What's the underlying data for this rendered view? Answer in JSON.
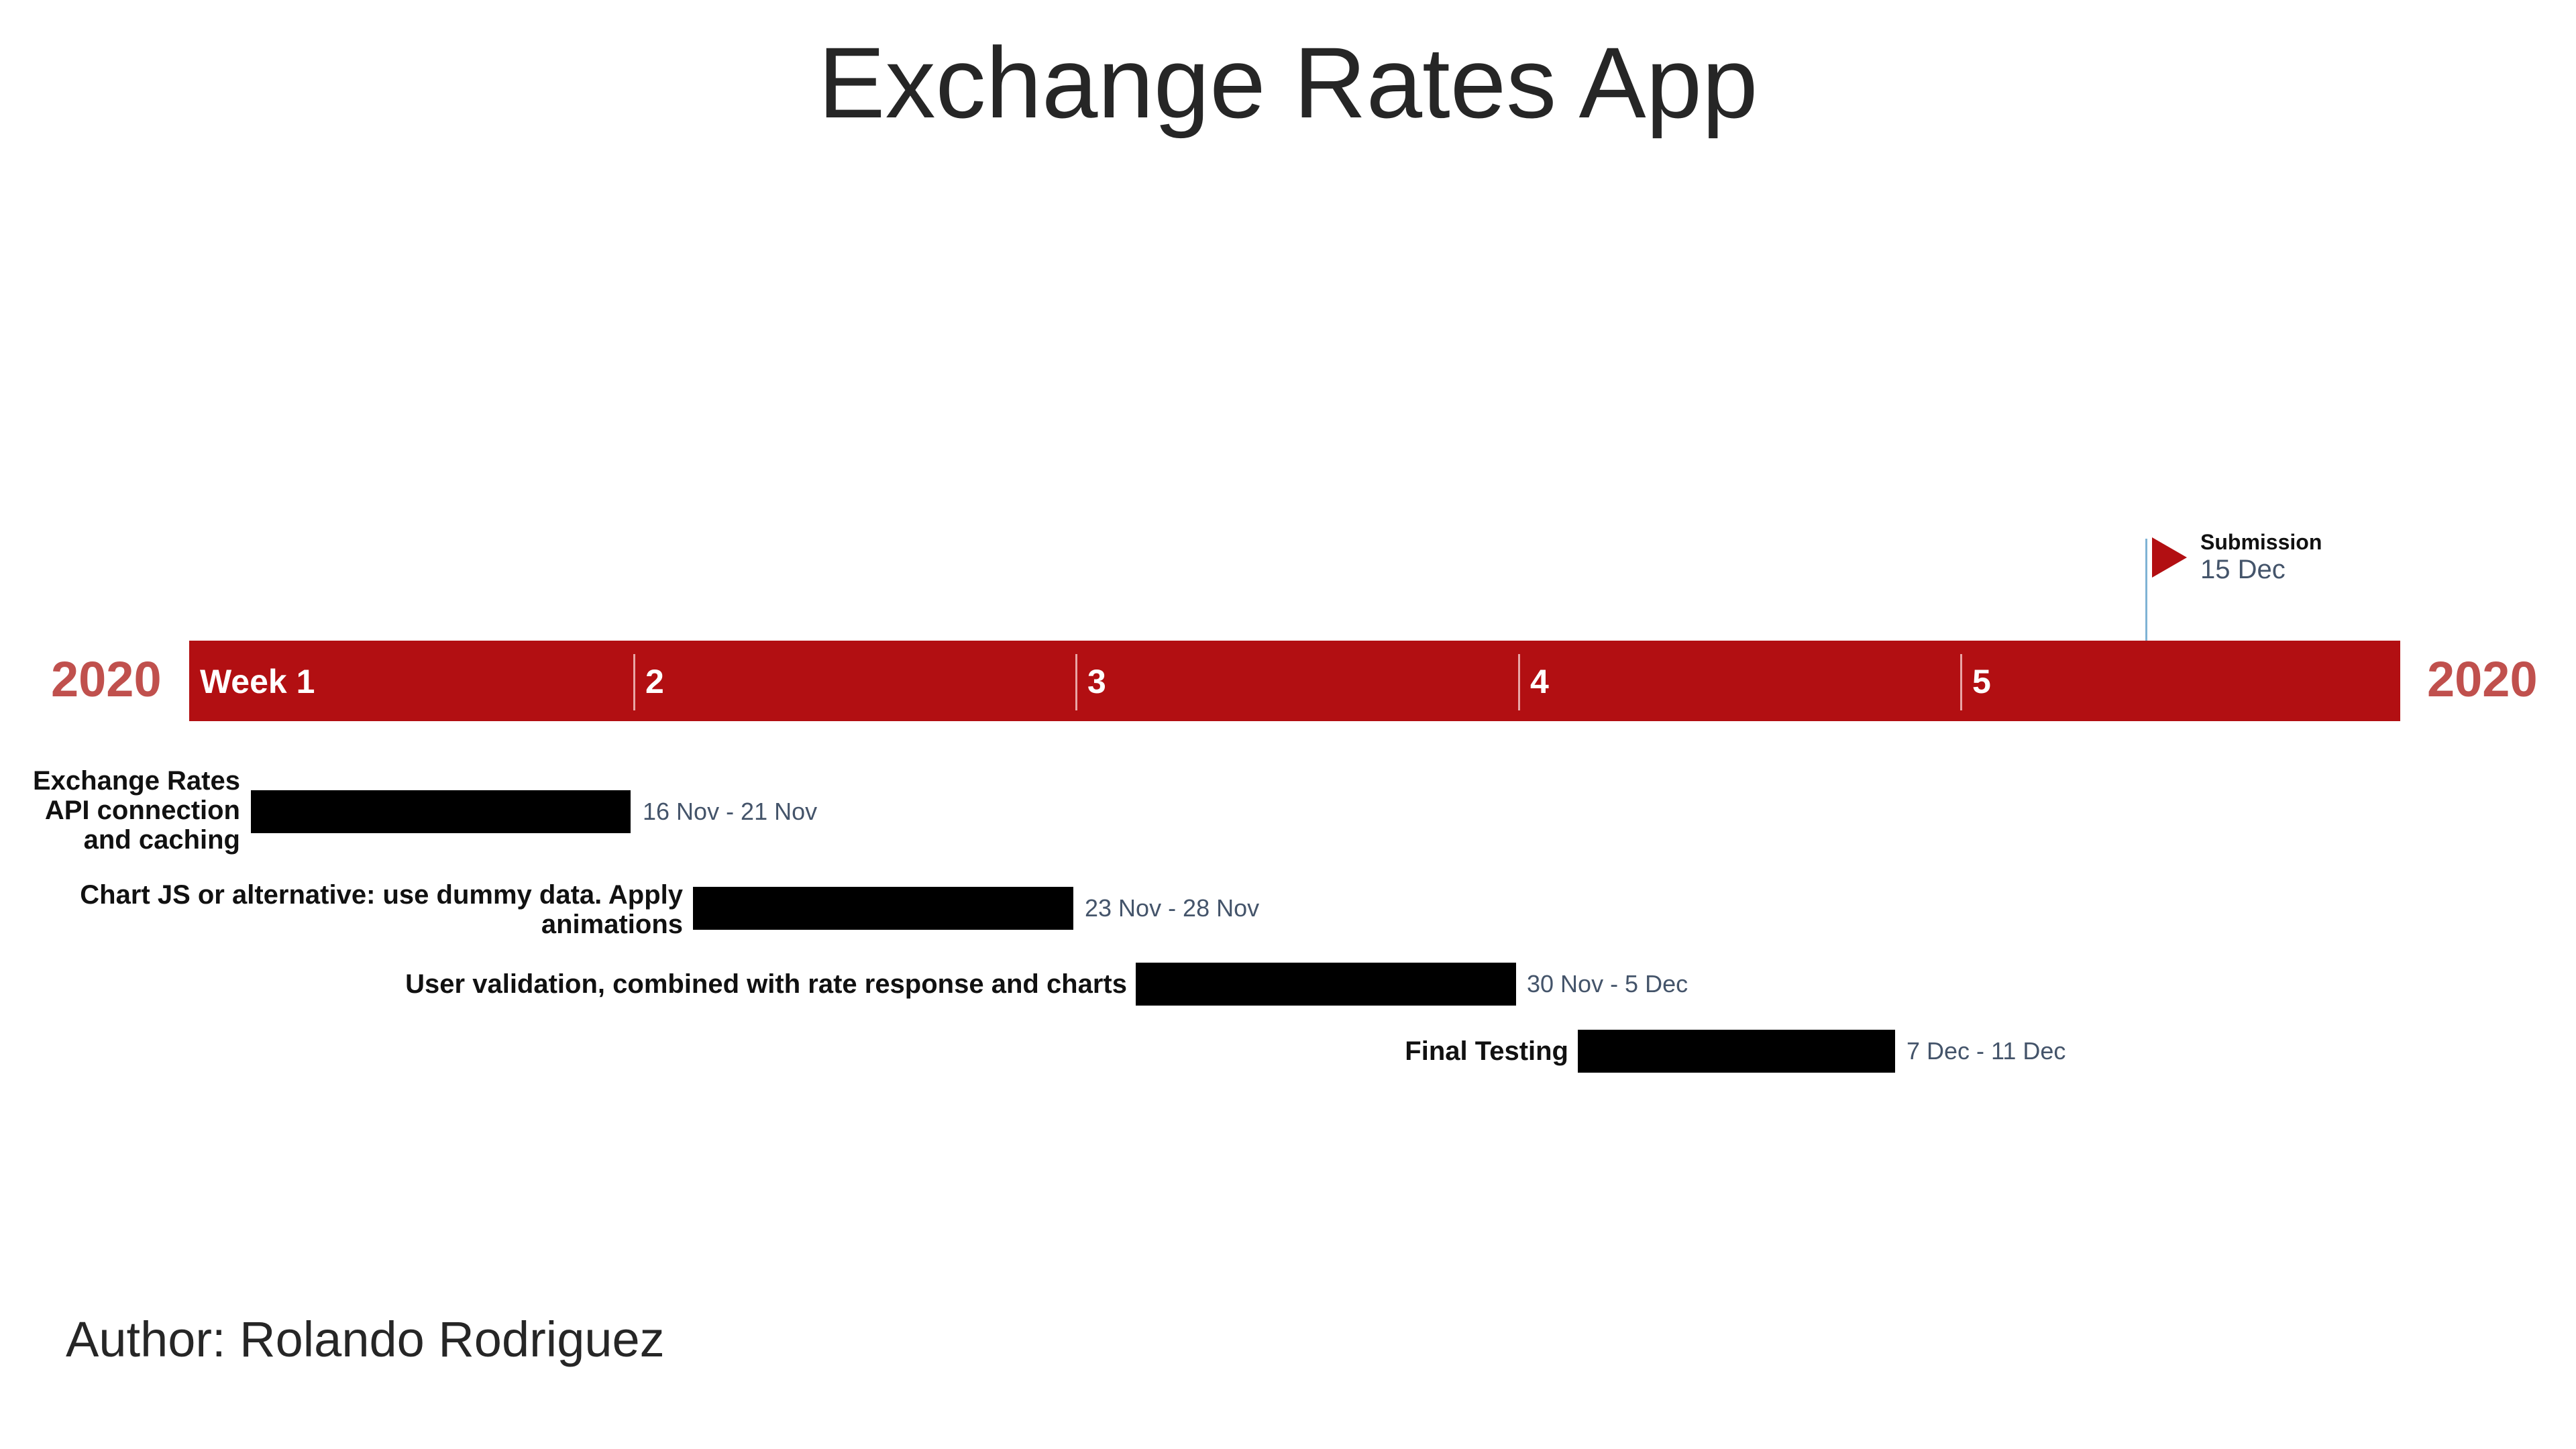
{
  "title": "Exchange Rates App",
  "year_left": "2020",
  "year_right": "2020",
  "colors": {
    "band": "#b20f12",
    "year": "#c0504d",
    "bar": "#000000",
    "milestone_line": "#7fb3d5",
    "date_text": "#44546a"
  },
  "weeks": [
    "Week 1",
    "2",
    "3",
    "4",
    "5"
  ],
  "milestone": {
    "name": "Submission",
    "date": "15 Dec",
    "icon": "flag-icon"
  },
  "tasks": [
    {
      "label": "Exchange Rates API connection and caching",
      "dates": "16 Nov - 21 Nov"
    },
    {
      "label": "Chart JS or alternative: use dummy data. Apply animations",
      "dates": "23 Nov - 28 Nov"
    },
    {
      "label": "User validation, combined with rate response and charts",
      "dates": "30 Nov - 5 Dec"
    },
    {
      "label": "Final Testing",
      "dates": "7 Dec - 11 Dec"
    }
  ],
  "author": "Author: Rolando Rodriguez"
}
